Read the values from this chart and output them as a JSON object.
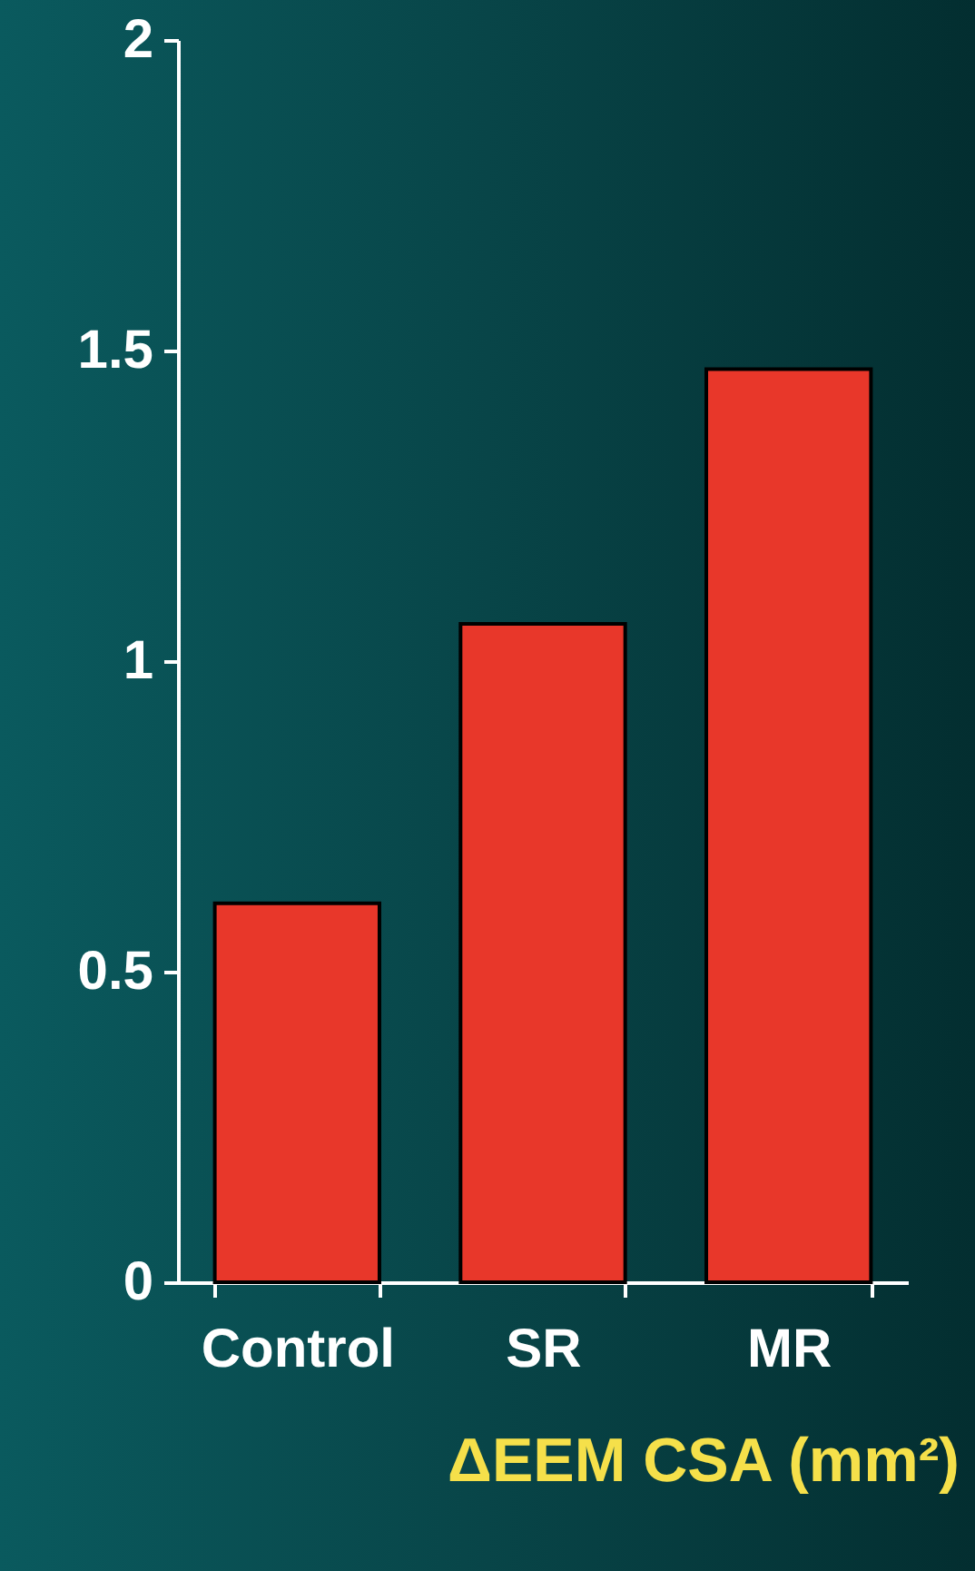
{
  "chart_data": {
    "type": "bar",
    "xlabel": "ΔEEM CSA (mm²)",
    "categories": [
      "Control",
      "SR",
      "MR"
    ],
    "values": [
      0.61,
      1.06,
      1.47
    ],
    "color": "#e8372a",
    "ylim": [
      0,
      2
    ],
    "yticks": [
      0,
      0.5,
      1,
      1.5,
      2
    ],
    "grid": false
  }
}
